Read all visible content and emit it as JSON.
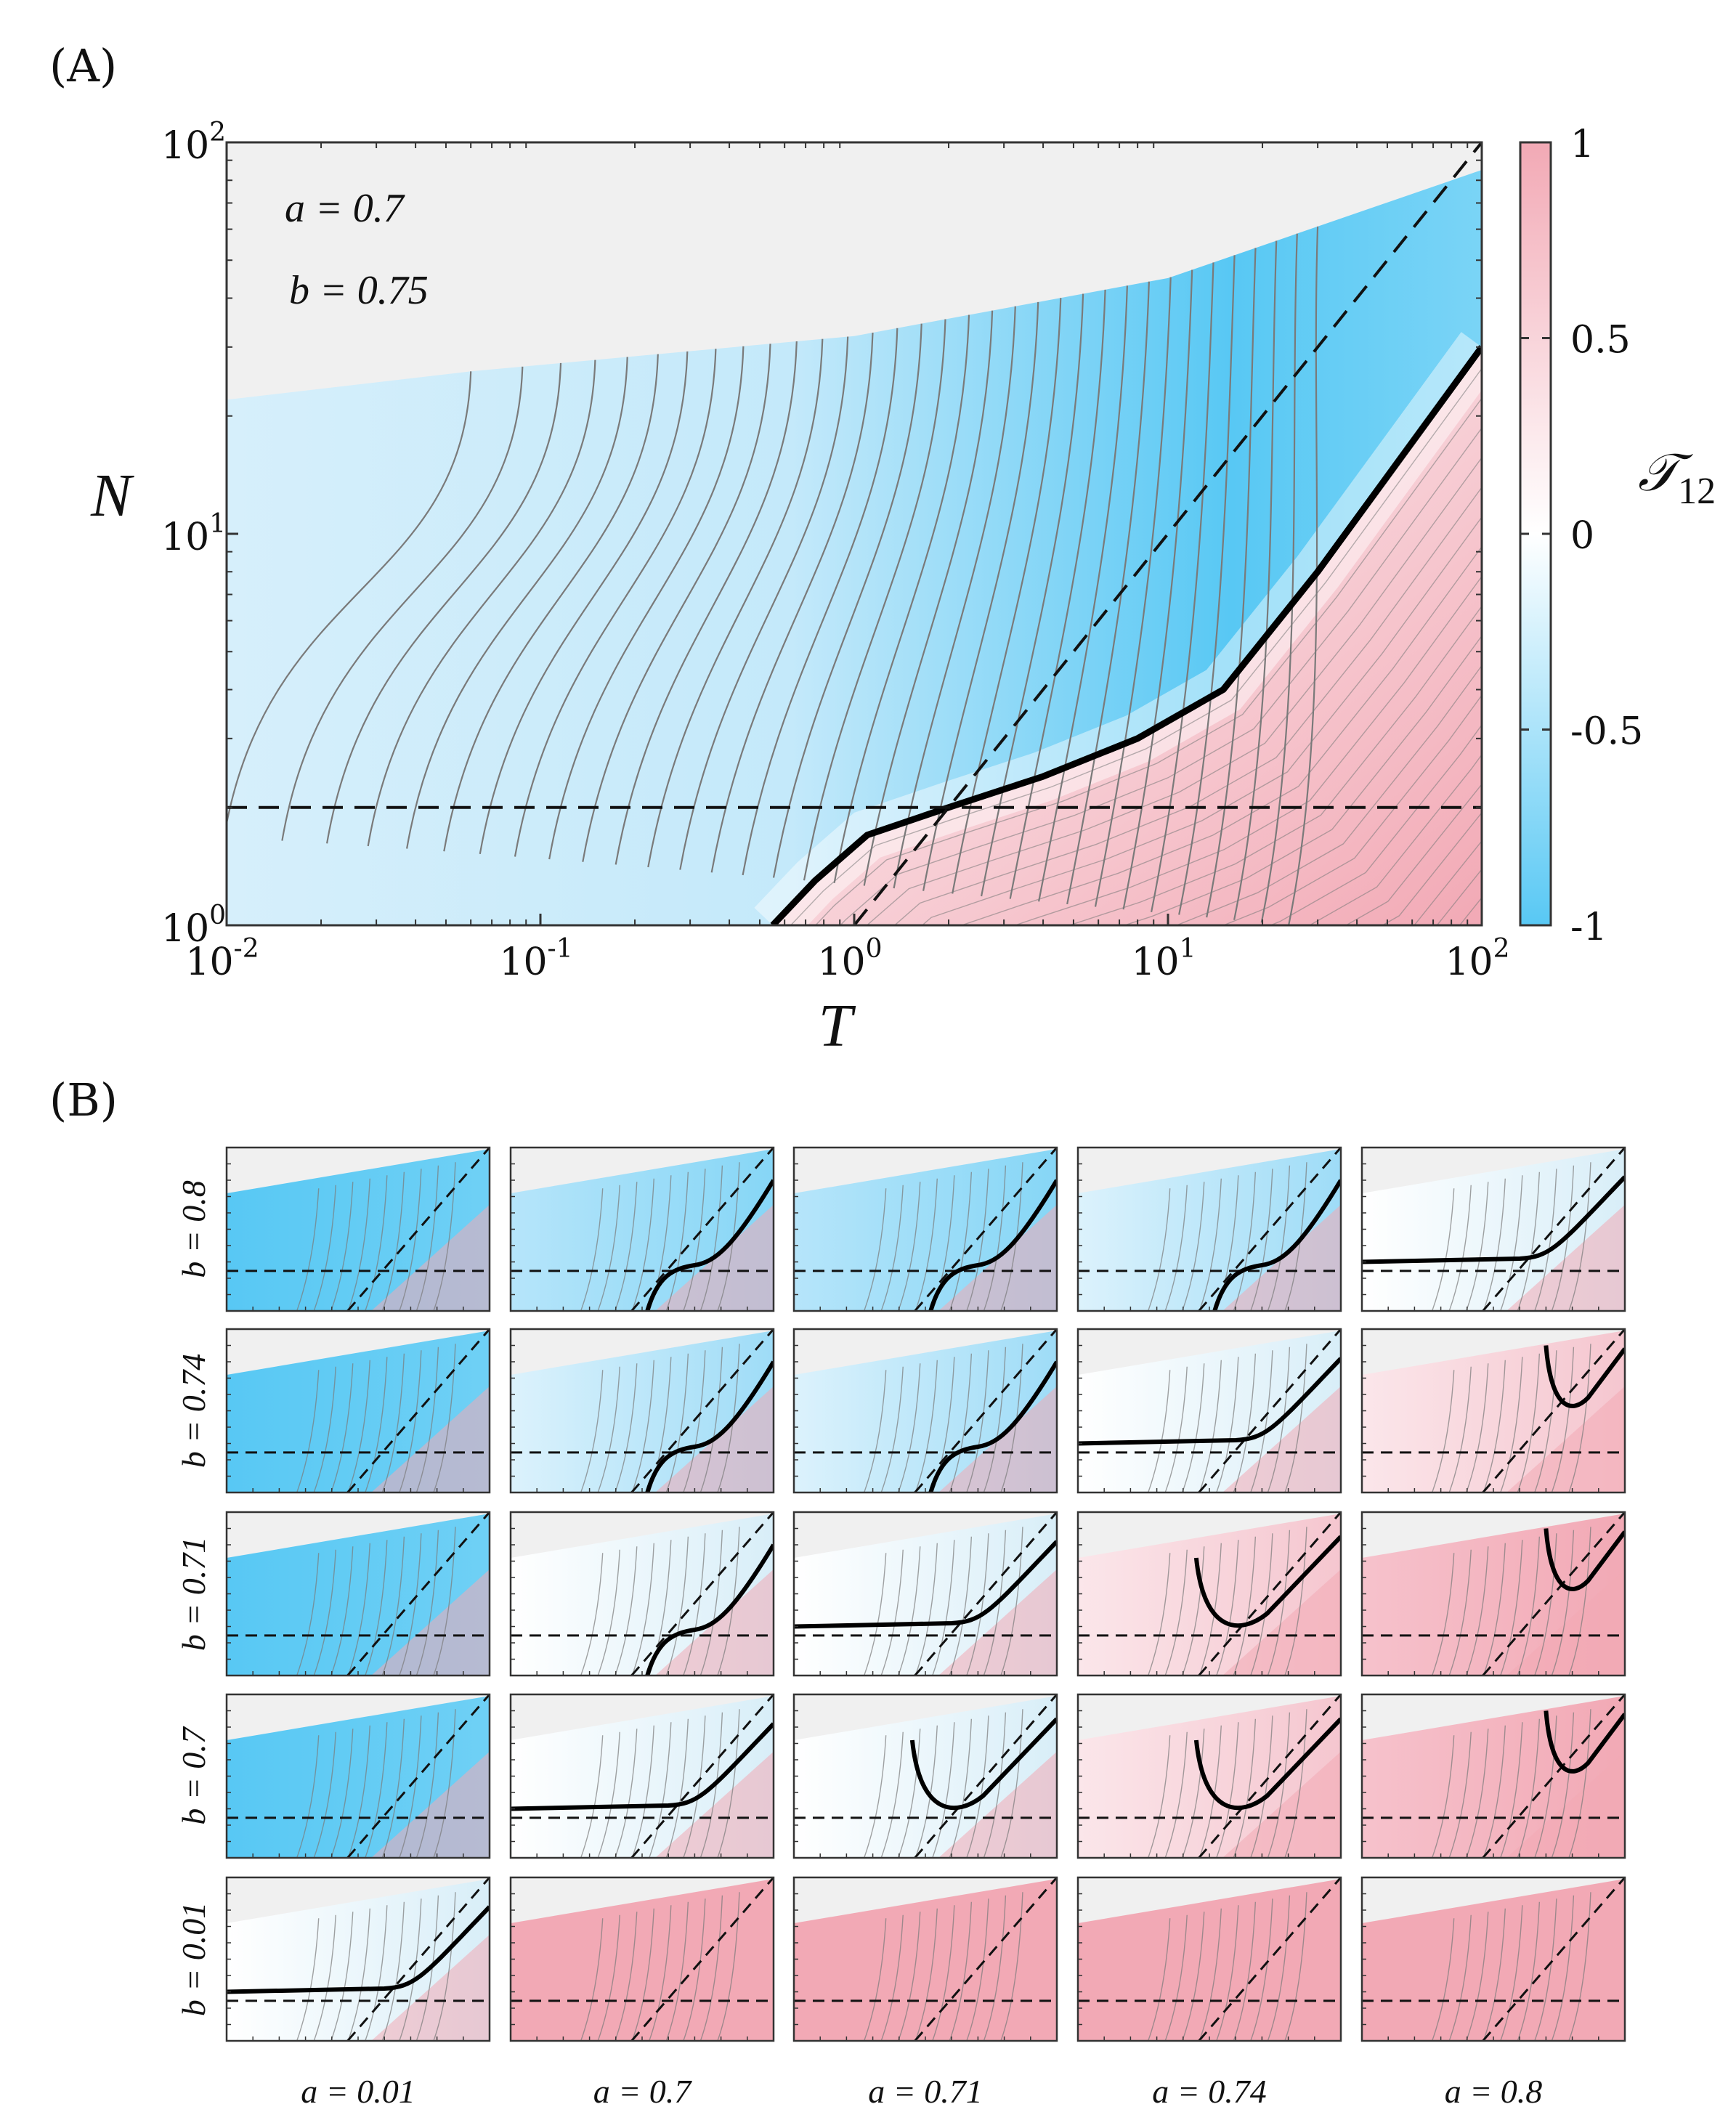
{
  "panel_a": {
    "label": "(A)",
    "param_a": "a = 0.7",
    "param_b": "b = 0.75"
  },
  "panel_b": {
    "label": "(B)"
  },
  "colors": {
    "negative": "#58c8f4",
    "zero": "#ffffff",
    "positive": "#f2a9b5",
    "invalid": "#f0f0f0",
    "contour": "#7a7a7a",
    "zero_contour": "#000000"
  },
  "chart_data": [
    {
      "type": "heatmap",
      "panel": "A",
      "title": "",
      "xlabel": "T",
      "ylabel": "N",
      "xscale": "log",
      "yscale": "log",
      "xlim": [
        0.01,
        100
      ],
      "ylim": [
        1,
        100
      ],
      "x_ticks": [
        0.01,
        0.1,
        1,
        10,
        100
      ],
      "y_ticks": [
        1,
        10,
        100
      ],
      "x_tick_labels": [
        {
          "base": "10",
          "exp": "-2"
        },
        {
          "base": "10",
          "exp": "-1"
        },
        {
          "base": "10",
          "exp": "0"
        },
        {
          "base": "10",
          "exp": "1"
        },
        {
          "base": "10",
          "exp": "2"
        }
      ],
      "y_tick_labels": [
        {
          "base": "10",
          "exp": "0"
        },
        {
          "base": "10",
          "exp": "1"
        },
        {
          "base": "10",
          "exp": "2"
        }
      ],
      "colorbar": {
        "label": "𝒯",
        "label_sub": "12",
        "range": [
          -1,
          1
        ],
        "ticks": [
          -1,
          -0.5,
          0,
          0.5,
          1
        ],
        "tick_labels": [
          "-1",
          "-0.5",
          "0",
          "0.5",
          "1"
        ]
      },
      "params": {
        "a": 0.7,
        "b": 0.75
      },
      "reference_lines": {
        "horizontal_N": 2,
        "diagonal": "N = T"
      },
      "upper_boundary_N": [
        [
          0.01,
          22
        ],
        [
          0.06,
          26
        ],
        [
          1,
          32
        ],
        [
          10,
          45
        ],
        [
          100,
          85
        ]
      ],
      "zero_contour": [
        [
          0.55,
          1
        ],
        [
          0.75,
          1.3
        ],
        [
          1.1,
          1.7
        ],
        [
          2,
          2
        ],
        [
          4,
          2.4
        ],
        [
          8,
          3
        ],
        [
          15,
          4
        ],
        [
          30,
          8
        ],
        [
          100,
          30
        ]
      ]
    },
    {
      "type": "heatmap",
      "panel": "B",
      "grid": "5x5",
      "a_values": [
        0.01,
        0.7,
        0.71,
        0.74,
        0.8
      ],
      "b_values": [
        0.8,
        0.74,
        0.71,
        0.7,
        0.01
      ],
      "col_labels": [
        "a = 0.01",
        "a = 0.7",
        "a = 0.71",
        "a = 0.74",
        "a = 0.8"
      ],
      "row_labels": [
        "b = 0.8",
        "b = 0.74",
        "b = 0.71",
        "b = 0.7",
        "b = 0.01"
      ],
      "cells": [
        [
          {
            "fill": "blue",
            "curve": "none"
          },
          {
            "fill": "lightblue",
            "curve": "s-low"
          },
          {
            "fill": "lightblue",
            "curve": "s-low"
          },
          {
            "fill": "paleblue",
            "curve": "s-low"
          },
          {
            "fill": "white",
            "curve": "flat"
          }
        ],
        [
          {
            "fill": "blue",
            "curve": "none"
          },
          {
            "fill": "paleblue",
            "curve": "s-low"
          },
          {
            "fill": "paleblue",
            "curve": "s-low"
          },
          {
            "fill": "white",
            "curve": "flat"
          },
          {
            "fill": "palepink",
            "curve": "u-small"
          }
        ],
        [
          {
            "fill": "blue",
            "curve": "none"
          },
          {
            "fill": "white",
            "curve": "s-low"
          },
          {
            "fill": "white",
            "curve": "flat"
          },
          {
            "fill": "palepink",
            "curve": "u-wide"
          },
          {
            "fill": "pink",
            "curve": "u-small"
          }
        ],
        [
          {
            "fill": "blue",
            "curve": "none"
          },
          {
            "fill": "white",
            "curve": "flat"
          },
          {
            "fill": "white",
            "curve": "u-wide"
          },
          {
            "fill": "palepink",
            "curve": "u-wide"
          },
          {
            "fill": "pink",
            "curve": "u-small"
          }
        ],
        [
          {
            "fill": "white",
            "curve": "flat"
          },
          {
            "fill": "pinkfull",
            "curve": "none"
          },
          {
            "fill": "pinkfull",
            "curve": "none"
          },
          {
            "fill": "pinkfull",
            "curve": "none"
          },
          {
            "fill": "pinkfull",
            "curve": "none"
          }
        ]
      ]
    }
  ]
}
